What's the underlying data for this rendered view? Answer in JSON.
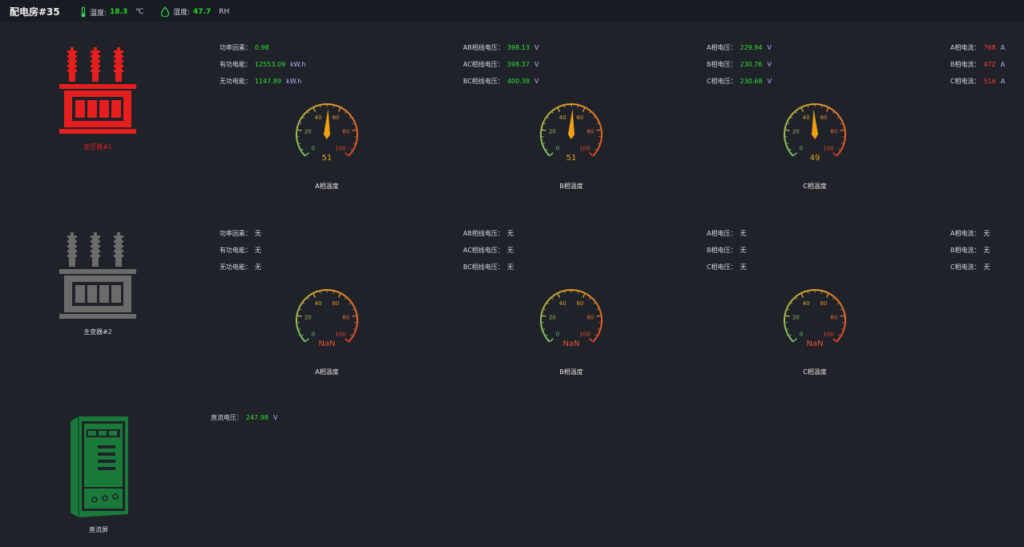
{
  "header": {
    "title": "配电房#35",
    "temp_label": "温度:",
    "temp_value": "18.3",
    "temp_unit": "℃",
    "hum_label": "湿度:",
    "hum_value": "47.7",
    "hum_unit": "RH"
  },
  "transformer1": {
    "name": "变压器#1",
    "color": "#e61e1e",
    "pf_label": "功率因素：",
    "pf": "0.98",
    "active_label": "有功电能：",
    "active": "12553.09",
    "active_unit": "kW.h",
    "reactive_label": "无功电能：",
    "reactive": "1147.89",
    "reactive_unit": "kW.h",
    "uab_label": "AB相线电压：",
    "uab": "398.13",
    "uab_unit": "V",
    "uac_label": "AC相线电压：",
    "uac": "398.37",
    "uac_unit": "V",
    "ubc_label": "BC相线电压：",
    "ubc": "400.38",
    "ubc_unit": "V",
    "ua_label": "A相电压：",
    "ua": "229.94",
    "ua_unit": "V",
    "ub_label": "B相电压：",
    "ub": "230.76",
    "ub_unit": "V",
    "uc_label": "C相电压：",
    "uc": "230.68",
    "uc_unit": "V",
    "ia_label": "A相电流：",
    "ia": "768",
    "ia_unit": "A",
    "ib_label": "B相电流：",
    "ib": "472",
    "ib_unit": "A",
    "ic_label": "C相电流：",
    "ic": "516",
    "ic_unit": "A",
    "gauges": [
      {
        "label": "A相温度",
        "value": 51,
        "display": "51"
      },
      {
        "label": "B相温度",
        "value": 51,
        "display": "51"
      },
      {
        "label": "C相温度",
        "value": 49,
        "display": "49"
      }
    ]
  },
  "transformer2": {
    "name": "主变器#2",
    "color": "#6b6b6b",
    "pf_label": "功率因素：",
    "pf": "无",
    "active_label": "有功电能：",
    "active": "无",
    "reactive_label": "无功电能：",
    "reactive": "无",
    "uab_label": "AB相线电压：",
    "uab": "无",
    "uac_label": "AC相线电压：",
    "uac": "无",
    "ubc_label": "BC相线电压：",
    "ubc": "无",
    "ua_label": "A相电压：",
    "ua": "无",
    "ub_label": "B相电压：",
    "ub": "无",
    "uc_label": "C相电压：",
    "uc": "无",
    "ia_label": "A相电流：",
    "ia": "无",
    "ib_label": "B相电流：",
    "ib": "无",
    "ic_label": "C相电流：",
    "ic": "无",
    "gauges": [
      {
        "label": "A相温度",
        "value": null,
        "display": "NaN"
      },
      {
        "label": "B相温度",
        "value": null,
        "display": "NaN"
      },
      {
        "label": "C相温度",
        "value": null,
        "display": "NaN"
      }
    ]
  },
  "dc_panel": {
    "name": "直流屏",
    "color": "#1a7a3a",
    "voltage_label": "直流电压：",
    "voltage": "247.98",
    "voltage_unit": "V"
  },
  "gauge_scale": {
    "min": 0,
    "max": 100,
    "ticks": [
      "0",
      "20",
      "40",
      "60",
      "80",
      "100"
    ]
  }
}
